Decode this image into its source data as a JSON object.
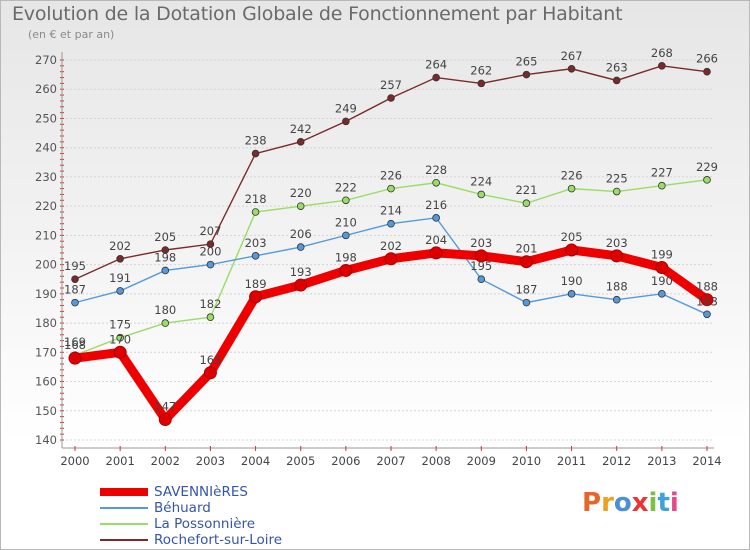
{
  "title": "Evolution de la Dotation Globale de Fonctionnement par Habitant",
  "subtitle": "(en € et par an)",
  "logo": {
    "text": "Proxiti",
    "colors": [
      "#e8652a",
      "#f0a020",
      "#4a8fd8",
      "#ee3333",
      "#7ac142",
      "#3fa2dd",
      "#e24a8a"
    ]
  },
  "chart_data": {
    "type": "line",
    "title": "Evolution de la Dotation Globale de Fonctionnement par Habitant",
    "subtitle": "(en € et par an)",
    "xlabel": "",
    "ylabel": "",
    "ylim": [
      140,
      270
    ],
    "yticks": [
      140,
      150,
      160,
      170,
      180,
      190,
      200,
      210,
      220,
      230,
      240,
      250,
      260,
      270
    ],
    "grid": true,
    "legend_position": "bottom-left",
    "x": [
      "2000",
      "2001",
      "2002",
      "2003",
      "2004",
      "2005",
      "2006",
      "2007",
      "2008",
      "2009",
      "2010",
      "2011",
      "2012",
      "2013",
      "2014"
    ],
    "series": [
      {
        "name": "Rochefort-sur-Loire",
        "color": "#7a2a2a",
        "values": [
          195,
          202,
          205,
          207,
          238,
          242,
          249,
          257,
          264,
          262,
          265,
          267,
          263,
          268,
          266
        ]
      },
      {
        "name": "La Possonnière",
        "color": "#99dd66",
        "values": [
          169,
          175,
          180,
          182,
          218,
          220,
          222,
          226,
          228,
          224,
          221,
          226,
          225,
          227,
          229
        ]
      },
      {
        "name": "Béhuard",
        "color": "#5599dd",
        "values": [
          187,
          191,
          198,
          200,
          203,
          206,
          210,
          214,
          216,
          195,
          187,
          190,
          188,
          190,
          183
        ]
      },
      {
        "name": "SAVENNIèRES",
        "color": "#ee0000",
        "values": [
          168,
          170,
          147,
          163,
          189,
          193,
          198,
          202,
          204,
          203,
          201,
          205,
          203,
          199,
          188
        ]
      }
    ]
  }
}
